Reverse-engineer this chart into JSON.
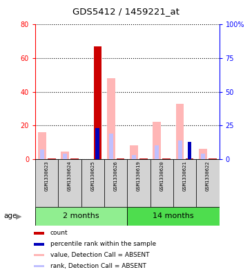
{
  "title": "GDS5412 / 1459221_at",
  "samples": [
    "GSM1330623",
    "GSM1330624",
    "GSM1330625",
    "GSM1330626",
    "GSM1330619",
    "GSM1330620",
    "GSM1330621",
    "GSM1330622"
  ],
  "count_values": [
    0.5,
    0.5,
    67,
    0.5,
    0.5,
    0.5,
    0.5,
    0.5
  ],
  "percentile_rank_values": [
    0,
    0,
    23,
    0,
    0,
    0,
    13,
    0
  ],
  "absent_value_values": [
    16,
    4.5,
    0,
    48,
    8,
    22,
    33,
    6
  ],
  "absent_rank_values": [
    7,
    4,
    0,
    19,
    3,
    10,
    14,
    4
  ],
  "count_color": "#CC0000",
  "percentile_color": "#0000BB",
  "absent_value_color": "#FFB6B6",
  "absent_rank_color": "#C0C0FF",
  "ylim_left": [
    0,
    80
  ],
  "ylim_right": [
    0,
    100
  ],
  "yticks_left": [
    0,
    20,
    40,
    60,
    80
  ],
  "ytick_labels_left": [
    "0",
    "20",
    "40",
    "60",
    "80"
  ],
  "yticks_right": [
    0,
    25,
    50,
    75,
    100
  ],
  "ytick_labels_right": [
    "0",
    "25",
    "50",
    "75",
    "100%"
  ],
  "bar_width": 0.35,
  "sample_label_area_color": "#D3D3D3",
  "group1_color": "#90EE90",
  "group2_color": "#4EDD4E",
  "legend_items": [
    {
      "color": "#CC0000",
      "label": "count"
    },
    {
      "color": "#0000BB",
      "label": "percentile rank within the sample"
    },
    {
      "color": "#FFB6B6",
      "label": "value, Detection Call = ABSENT"
    },
    {
      "color": "#C0C0FF",
      "label": "rank, Detection Call = ABSENT"
    }
  ]
}
